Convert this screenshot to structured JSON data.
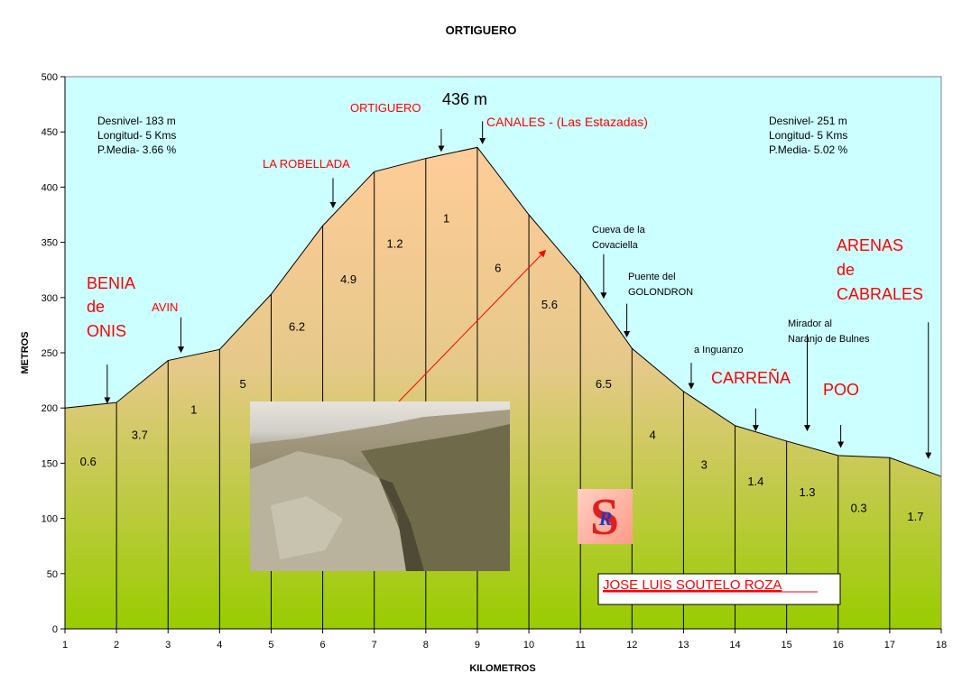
{
  "chart_data": {
    "type": "area",
    "title": "ORTIGUERO",
    "xlabel": "KILOMETROS",
    "ylabel": "METROS",
    "xlim": [
      1,
      18
    ],
    "ylim": [
      0,
      500
    ],
    "x_ticks": [
      1,
      2,
      3,
      4,
      5,
      6,
      7,
      8,
      9,
      10,
      11,
      12,
      13,
      14,
      15,
      16,
      17,
      18
    ],
    "y_ticks": [
      0,
      50,
      100,
      150,
      200,
      250,
      300,
      350,
      400,
      450,
      500
    ],
    "colors": {
      "plot_background": "#ccffff",
      "area_top": "#ffcc99",
      "area_bottom": "#99cc00",
      "annotation_red": "#ff0000"
    },
    "points": [
      {
        "x": 1,
        "y": 200
      },
      {
        "x": 2,
        "y": 205
      },
      {
        "x": 3,
        "y": 243
      },
      {
        "x": 4,
        "y": 253
      },
      {
        "x": 5,
        "y": 303
      },
      {
        "x": 6,
        "y": 365
      },
      {
        "x": 7,
        "y": 414
      },
      {
        "x": 8,
        "y": 426
      },
      {
        "x": 8.3,
        "y": 429
      },
      {
        "x": 9,
        "y": 436
      },
      {
        "x": 10,
        "y": 375
      },
      {
        "x": 11,
        "y": 320
      },
      {
        "x": 12,
        "y": 254
      },
      {
        "x": 13,
        "y": 215
      },
      {
        "x": 14,
        "y": 184
      },
      {
        "x": 15,
        "y": 170
      },
      {
        "x": 16,
        "y": 157
      },
      {
        "x": 17,
        "y": 155
      },
      {
        "x": 18,
        "y": 138
      }
    ],
    "segment_slopes": [
      {
        "x": 1.45,
        "y": 148,
        "label": "0.6"
      },
      {
        "x": 2.45,
        "y": 172,
        "label": "3.7"
      },
      {
        "x": 3.5,
        "y": 195,
        "label": "1"
      },
      {
        "x": 4.45,
        "y": 218,
        "label": "5"
      },
      {
        "x": 5.5,
        "y": 270,
        "label": "6.2"
      },
      {
        "x": 6.5,
        "y": 313,
        "label": "4.9"
      },
      {
        "x": 7.4,
        "y": 345,
        "label": "1.2"
      },
      {
        "x": 8.4,
        "y": 368,
        "label": "1"
      },
      {
        "x": 9.4,
        "y": 323,
        "label": "6"
      },
      {
        "x": 10.4,
        "y": 290,
        "label": "5.6"
      },
      {
        "x": 11.45,
        "y": 218,
        "label": "6.5"
      },
      {
        "x": 12.4,
        "y": 172,
        "label": "4"
      },
      {
        "x": 13.4,
        "y": 145,
        "label": "3"
      },
      {
        "x": 14.4,
        "y": 130,
        "label": "1.4"
      },
      {
        "x": 15.4,
        "y": 120,
        "label": "1.3"
      },
      {
        "x": 16.4,
        "y": 106,
        "label": "0.3"
      },
      {
        "x": 17.5,
        "y": 98,
        "label": "1.7"
      }
    ],
    "stats_left": [
      "Desnivel- 183 m",
      "Longitud- 5 Kms",
      "P.Media- 3.66 %"
    ],
    "stats_right": [
      "Desnivel- 251 m",
      "Longitud- 5 Kms",
      "P.Media- 5.02 %"
    ],
    "peak_label": "436 m",
    "places_small_red": [
      {
        "label": "AVIN",
        "arrow_x": 3.25,
        "arrow_y": 251
      },
      {
        "label": "LA ROBELLADA",
        "arrow_x": 6.2,
        "arrow_y": 382
      },
      {
        "label": "ORTIGUERO",
        "arrow_x": 8.3,
        "arrow_y": 433
      },
      {
        "label": "CANALES - (Las Estazadas)",
        "arrow_x": 9.1,
        "arrow_y": 440
      }
    ],
    "places_big_red": [
      {
        "lines": [
          "BENIA",
          "de",
          "ONIS"
        ],
        "arrow_x": 1.82,
        "arrow_y": 205
      },
      {
        "lines": [
          "CARREÑA"
        ],
        "arrow_x": 14.4,
        "arrow_y": 180
      },
      {
        "lines": [
          "POO"
        ],
        "arrow_x": 16.05,
        "arrow_y": 165
      },
      {
        "lines": [
          "ARENAS",
          "de",
          "CABRALES"
        ],
        "arrow_x": 17.75,
        "arrow_y": 155
      }
    ],
    "places_black": [
      {
        "lines": [
          "Cueva de la",
          "Covaciella"
        ],
        "arrow_x": 11.45,
        "arrow_y": 300
      },
      {
        "lines": [
          "Puente del",
          "GOLONDRON"
        ],
        "arrow_x": 11.9,
        "arrow_y": 265
      },
      {
        "lines": [
          "a Inguanzo"
        ],
        "arrow_x": 13.15,
        "arrow_y": 218
      },
      {
        "lines": [
          "Mirador al",
          "Naranjo de Bulnes"
        ],
        "arrow_x": 15.4,
        "arrow_y": 180
      }
    ],
    "author": "JOSE LUIS SOUTELO ROZA",
    "logo_letter": "R"
  }
}
